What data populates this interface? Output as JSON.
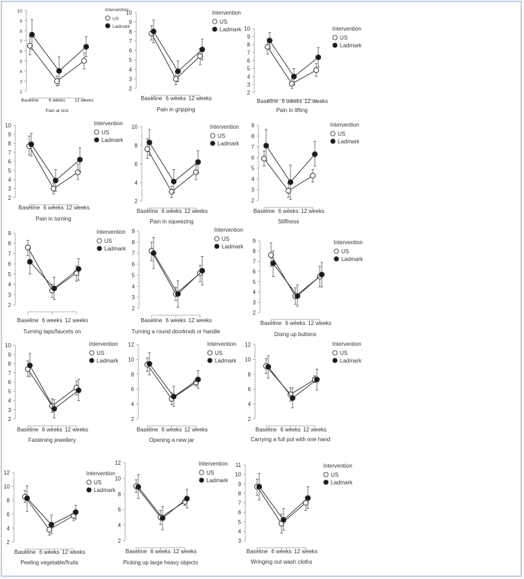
{
  "chart_data": [
    {
      "type": "line",
      "title": "Pain at rest",
      "categories": [
        "Baseline",
        "6 weeks",
        "12 weeks"
      ],
      "ylim": [
        2,
        10
      ],
      "yticks": [
        2,
        3,
        4,
        5,
        6,
        7,
        8,
        9,
        10
      ],
      "legend_title": "Intervention",
      "series": [
        {
          "name": "US",
          "marker": "open-circle",
          "values": [
            6.5,
            3.0,
            5.0
          ],
          "lower": [
            5.6,
            2.5,
            4.2
          ],
          "upper": [
            7.4,
            3.5,
            5.8
          ]
        },
        {
          "name": "Ladmark",
          "marker": "filled-circle",
          "values": [
            7.6,
            4.0,
            6.4
          ],
          "lower": [
            6.1,
            2.6,
            5.4
          ],
          "upper": [
            9.1,
            5.4,
            7.4
          ]
        }
      ]
    },
    {
      "type": "line",
      "title": "Pain in gripping",
      "categories": [
        "Baseline",
        "6 weeks",
        "12 weeks"
      ],
      "ylim": [
        2,
        10
      ],
      "yticks": [
        2,
        3,
        4,
        5,
        6,
        7,
        8,
        9,
        10
      ],
      "legend_title": "Intervention",
      "series": [
        {
          "name": "US",
          "marker": "open-circle",
          "values": [
            7.8,
            3.0,
            5.4
          ],
          "lower": [
            7.1,
            2.4,
            4.5
          ],
          "upper": [
            8.6,
            3.7,
            6.2
          ]
        },
        {
          "name": "Ladmark",
          "marker": "filled-circle",
          "values": [
            8.0,
            3.8,
            6.1
          ],
          "lower": [
            6.8,
            2.7,
            5.0
          ],
          "upper": [
            9.2,
            4.9,
            7.2
          ]
        }
      ]
    },
    {
      "type": "line",
      "title": "Pain in lifting",
      "categories": [
        "Baseline",
        "6 weeks",
        "12 weeks"
      ],
      "ylim": [
        2,
        10
      ],
      "yticks": [
        2,
        3,
        4,
        5,
        6,
        7,
        8,
        9,
        10
      ],
      "legend_title": "Intervention",
      "series": [
        {
          "name": "US",
          "marker": "open-circle",
          "values": [
            7.7,
            3.1,
            4.8
          ],
          "lower": [
            6.8,
            2.5,
            4.0
          ],
          "upper": [
            8.7,
            3.7,
            5.6
          ]
        },
        {
          "name": "Ladmark",
          "marker": "filled-circle",
          "values": [
            8.5,
            4.0,
            6.4
          ],
          "lower": [
            7.5,
            3.0,
            5.2
          ],
          "upper": [
            9.5,
            5.0,
            7.6
          ]
        }
      ]
    },
    {
      "type": "line",
      "title": "Pain in turning",
      "categories": [
        "Baseline",
        "6 weeks",
        "12 weeks"
      ],
      "ylim": [
        2,
        10
      ],
      "yticks": [
        2,
        3,
        4,
        5,
        6,
        7,
        8,
        9,
        10
      ],
      "legend_title": "Intervention",
      "series": [
        {
          "name": "US",
          "marker": "open-circle",
          "values": [
            7.7,
            3.0,
            4.8
          ],
          "lower": [
            6.7,
            2.4,
            4.0
          ],
          "upper": [
            8.8,
            3.6,
            5.7
          ]
        },
        {
          "name": "Ladmark",
          "marker": "filled-circle",
          "values": [
            7.9,
            3.9,
            6.2
          ],
          "lower": [
            6.6,
            2.7,
            4.9
          ],
          "upper": [
            9.1,
            5.1,
            7.5
          ]
        }
      ]
    },
    {
      "type": "line",
      "title": "Pain in squeezing",
      "categories": [
        "Baseline",
        "6 weeks",
        "12 weeks"
      ],
      "ylim": [
        2,
        10
      ],
      "yticks": [
        2,
        4,
        6,
        8,
        10
      ],
      "legend_title": "Intervention",
      "series": [
        {
          "name": "US",
          "marker": "open-circle",
          "values": [
            7.6,
            3.0,
            5.1
          ],
          "lower": [
            6.6,
            2.4,
            4.3
          ],
          "upper": [
            8.7,
            3.6,
            5.9
          ]
        },
        {
          "name": "Ladmark",
          "marker": "filled-circle",
          "values": [
            8.3,
            4.1,
            6.2
          ],
          "lower": [
            6.9,
            2.9,
            5.0
          ],
          "upper": [
            9.7,
            5.4,
            7.4
          ]
        }
      ]
    },
    {
      "type": "line",
      "title": "Stiffness",
      "categories": [
        "Baseline",
        "6 weeks",
        "12 weeks"
      ],
      "ylim": [
        2,
        9
      ],
      "yticks": [
        2,
        3,
        4,
        5,
        6,
        7,
        8,
        9
      ],
      "legend_title": "Intervention",
      "series": [
        {
          "name": "US",
          "marker": "open-circle",
          "values": [
            5.9,
            2.9,
            4.3
          ],
          "lower": [
            5.2,
            2.3,
            3.7
          ],
          "upper": [
            6.6,
            3.6,
            4.9
          ]
        },
        {
          "name": "Ladmark",
          "marker": "filled-circle",
          "values": [
            7.1,
            3.7,
            6.3
          ],
          "lower": [
            5.7,
            2.1,
            5.2
          ],
          "upper": [
            8.6,
            5.3,
            7.5
          ]
        }
      ]
    },
    {
      "type": "line",
      "title": "Turning taps/faucets on",
      "categories": [
        "Baseline",
        "6 weeks",
        "12 weeks"
      ],
      "ylim": [
        2,
        9
      ],
      "yticks": [
        2,
        3,
        4,
        5,
        6,
        7,
        8,
        9
      ],
      "legend_title": "Intervention",
      "series": [
        {
          "name": "US",
          "marker": "open-circle",
          "values": [
            7.6,
            3.4,
            5.1
          ],
          "lower": [
            6.8,
            2.7,
            4.3
          ],
          "upper": [
            8.3,
            4.0,
            5.8
          ]
        },
        {
          "name": "Ladmark",
          "marker": "filled-circle",
          "values": [
            6.2,
            3.6,
            5.5
          ],
          "lower": [
            5.0,
            2.5,
            4.4
          ],
          "upper": [
            7.5,
            4.7,
            6.5
          ]
        }
      ]
    },
    {
      "type": "line",
      "title": "Turning a round doorknob or handle",
      "categories": [
        "Baseline",
        "6 weeks",
        "12 weeks"
      ],
      "ylim": [
        2,
        9
      ],
      "yticks": [
        2,
        3,
        4,
        5,
        6,
        7,
        8,
        9
      ],
      "legend_title": "Intervention",
      "series": [
        {
          "name": "US",
          "marker": "open-circle",
          "values": [
            7.2,
            3.3,
            5.2
          ],
          "lower": [
            6.3,
            2.7,
            4.4
          ],
          "upper": [
            8.0,
            3.9,
            5.9
          ]
        },
        {
          "name": "Ladmark",
          "marker": "filled-circle",
          "values": [
            7.0,
            3.3,
            5.4
          ],
          "lower": [
            5.6,
            2.1,
            4.1
          ],
          "upper": [
            8.4,
            4.5,
            6.7
          ]
        }
      ]
    },
    {
      "type": "line",
      "title": "Doing up buttons",
      "categories": [
        "Baseline",
        "6 weeks",
        "12 weeks"
      ],
      "ylim": [
        2,
        9
      ],
      "yticks": [
        2,
        3,
        4,
        5,
        6,
        7,
        8,
        9
      ],
      "legend_title": "Intervention",
      "series": [
        {
          "name": "US",
          "marker": "open-circle",
          "values": [
            7.6,
            3.6,
            5.5
          ],
          "lower": [
            6.5,
            2.8,
            4.5
          ],
          "upper": [
            8.8,
            4.4,
            6.5
          ]
        },
        {
          "name": "Ladmark",
          "marker": "filled-circle",
          "values": [
            6.8,
            3.6,
            5.7
          ],
          "lower": [
            5.5,
            2.6,
            4.5
          ],
          "upper": [
            8.0,
            4.7,
            6.9
          ]
        }
      ]
    },
    {
      "type": "line",
      "title": "Fastening jewellery",
      "categories": [
        "Baseline",
        "6 weeks",
        "12 weeks"
      ],
      "ylim": [
        2,
        10
      ],
      "yticks": [
        2,
        3,
        4,
        5,
        6,
        7,
        8,
        9,
        10
      ],
      "legend_title": "Intervention",
      "series": [
        {
          "name": "US",
          "marker": "open-circle",
          "values": [
            7.4,
            3.4,
            5.4
          ],
          "lower": [
            6.6,
            2.7,
            4.6
          ],
          "upper": [
            8.3,
            4.2,
            6.1
          ]
        },
        {
          "name": "Ladmark",
          "marker": "filled-circle",
          "values": [
            7.8,
            3.1,
            5.1
          ],
          "lower": [
            6.6,
            2.1,
            4.0
          ],
          "upper": [
            9.1,
            4.1,
            6.3
          ]
        }
      ]
    },
    {
      "type": "line",
      "title": "Opening a new jar",
      "categories": [
        "Baseline",
        "6 weeks",
        "12 weeks"
      ],
      "ylim": [
        2,
        12
      ],
      "yticks": [
        2,
        4,
        6,
        8,
        10,
        12
      ],
      "legend_title": "Intervention",
      "series": [
        {
          "name": "US",
          "marker": "open-circle",
          "values": [
            9.3,
            4.7,
            6.9
          ],
          "lower": [
            8.4,
            3.9,
            6.4
          ],
          "upper": [
            10.2,
            5.5,
            7.4
          ]
        },
        {
          "name": "Ladmark",
          "marker": "filled-circle",
          "values": [
            9.4,
            5.0,
            7.3
          ],
          "lower": [
            7.9,
            3.7,
            6.1
          ],
          "upper": [
            10.9,
            6.4,
            8.5
          ]
        }
      ]
    },
    {
      "type": "line",
      "title": "Carrying a full pot with one hand",
      "categories": [
        "Baseline",
        "6 weeks",
        "12 weeks"
      ],
      "ylim": [
        2,
        12
      ],
      "yticks": [
        2,
        4,
        6,
        8,
        10,
        12
      ],
      "legend_title": "Intervention",
      "series": [
        {
          "name": "US",
          "marker": "open-circle",
          "values": [
            9.1,
            5.3,
            7.3
          ],
          "lower": [
            8.1,
            4.4,
            6.9
          ],
          "upper": [
            10.1,
            6.2,
            7.8
          ]
        },
        {
          "name": "Ladmark",
          "marker": "filled-circle",
          "values": [
            9.0,
            4.8,
            7.3
          ],
          "lower": [
            7.5,
            3.5,
            5.9
          ],
          "upper": [
            10.5,
            6.2,
            8.7
          ]
        }
      ]
    },
    {
      "type": "line",
      "title": "Peeling vegetable/fruits",
      "categories": [
        "Baseline",
        "6 weeks",
        "12 weeks"
      ],
      "ylim": [
        2,
        12
      ],
      "yticks": [
        2,
        4,
        6,
        8,
        10,
        12
      ],
      "legend_title": "Intervention",
      "series": [
        {
          "name": "US",
          "marker": "open-circle",
          "values": [
            8.5,
            3.8,
            5.8
          ],
          "lower": [
            7.7,
            3.0,
            5.1
          ],
          "upper": [
            9.4,
            4.5,
            6.4
          ]
        },
        {
          "name": "Ladmark",
          "marker": "filled-circle",
          "values": [
            8.3,
            4.5,
            6.3
          ],
          "lower": [
            6.4,
            3.2,
            5.3
          ],
          "upper": [
            10.1,
            5.9,
            7.3
          ]
        }
      ]
    },
    {
      "type": "line",
      "title": "Picking up large heavy objects",
      "categories": [
        "Baseline",
        "6 weeks",
        "12 weeks"
      ],
      "ylim": [
        2,
        12
      ],
      "yticks": [
        2,
        4,
        6,
        8,
        10,
        12
      ],
      "legend_title": "Intervention",
      "series": [
        {
          "name": "US",
          "marker": "open-circle",
          "values": [
            9.0,
            5.0,
            7.0
          ],
          "lower": [
            8.2,
            4.1,
            6.5
          ],
          "upper": [
            9.8,
            5.9,
            7.5
          ]
        },
        {
          "name": "Ladmark",
          "marker": "filled-circle",
          "values": [
            8.9,
            4.9,
            7.4
          ],
          "lower": [
            7.4,
            3.4,
            6.2
          ],
          "upper": [
            10.5,
            6.4,
            8.6
          ]
        }
      ]
    },
    {
      "type": "line",
      "title": "Wringing out wash cloths",
      "categories": [
        "Baseline",
        "6 weeks",
        "12 weeks"
      ],
      "ylim": [
        3,
        11
      ],
      "yticks": [
        3,
        4,
        5,
        6,
        7,
        8,
        9,
        10,
        11
      ],
      "legend_title": "Intervention",
      "series": [
        {
          "name": "US",
          "marker": "open-circle",
          "values": [
            8.7,
            4.8,
            7.0
          ],
          "lower": [
            7.8,
            3.8,
            6.2
          ],
          "upper": [
            9.5,
            5.8,
            7.6
          ]
        },
        {
          "name": "Ladmark",
          "marker": "filled-circle",
          "values": [
            8.7,
            5.2,
            7.5
          ],
          "lower": [
            7.3,
            4.1,
            6.4
          ],
          "upper": [
            10.1,
            6.4,
            8.7
          ]
        }
      ]
    }
  ]
}
